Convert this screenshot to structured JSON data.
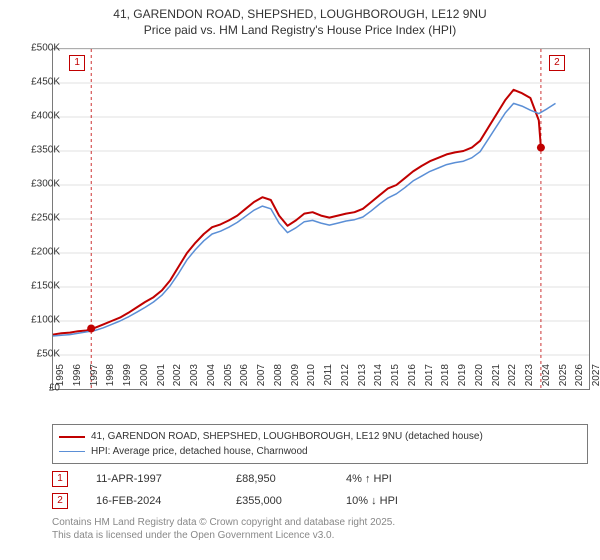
{
  "title": {
    "line1": "41, GARENDON ROAD, SHEPSHED, LOUGHBOROUGH, LE12 9NU",
    "line2": "Price paid vs. HM Land Registry's House Price Index (HPI)",
    "fontsize": 12,
    "color": "#333333"
  },
  "chart": {
    "type": "line",
    "background_color": "#ffffff",
    "border_color": "#7a7a7a",
    "grid_color": "#e0e0e0",
    "x": {
      "min": 1995,
      "max": 2027,
      "tick_step": 1,
      "labels": [
        "1995",
        "1996",
        "1997",
        "1998",
        "1999",
        "2000",
        "2001",
        "2002",
        "2003",
        "2004",
        "2005",
        "2006",
        "2007",
        "2008",
        "2009",
        "2010",
        "2011",
        "2012",
        "2013",
        "2014",
        "2015",
        "2016",
        "2017",
        "2018",
        "2019",
        "2020",
        "2021",
        "2022",
        "2023",
        "2024",
        "2025",
        "2026",
        "2027"
      ],
      "label_fontsize": 10
    },
    "y": {
      "min": 0,
      "max": 500000,
      "tick_step": 50000,
      "labels": [
        "£0",
        "£50K",
        "£100K",
        "£150K",
        "£200K",
        "£250K",
        "£300K",
        "£350K",
        "£400K",
        "£450K",
        "£500K"
      ],
      "label_fontsize": 10
    },
    "series": [
      {
        "name": "41, GARENDON ROAD, SHEPSHED, LOUGHBOROUGH, LE12 9NU (detached house)",
        "color": "#c00000",
        "line_width": 2,
        "points": [
          [
            1995.0,
            80000
          ],
          [
            1995.5,
            82000
          ],
          [
            1996.0,
            83000
          ],
          [
            1996.5,
            85000
          ],
          [
            1997.0,
            86000
          ],
          [
            1997.28,
            88950
          ],
          [
            1997.5,
            90000
          ],
          [
            1998.0,
            95000
          ],
          [
            1998.5,
            100000
          ],
          [
            1999.0,
            105000
          ],
          [
            1999.5,
            112000
          ],
          [
            2000.0,
            120000
          ],
          [
            2000.5,
            128000
          ],
          [
            2001.0,
            135000
          ],
          [
            2001.5,
            145000
          ],
          [
            2002.0,
            160000
          ],
          [
            2002.5,
            180000
          ],
          [
            2003.0,
            200000
          ],
          [
            2003.5,
            215000
          ],
          [
            2004.0,
            228000
          ],
          [
            2004.5,
            238000
          ],
          [
            2005.0,
            242000
          ],
          [
            2005.5,
            248000
          ],
          [
            2006.0,
            255000
          ],
          [
            2006.5,
            265000
          ],
          [
            2007.0,
            275000
          ],
          [
            2007.5,
            282000
          ],
          [
            2008.0,
            278000
          ],
          [
            2008.5,
            255000
          ],
          [
            2009.0,
            240000
          ],
          [
            2009.5,
            248000
          ],
          [
            2010.0,
            258000
          ],
          [
            2010.5,
            260000
          ],
          [
            2011.0,
            255000
          ],
          [
            2011.5,
            252000
          ],
          [
            2012.0,
            255000
          ],
          [
            2012.5,
            258000
          ],
          [
            2013.0,
            260000
          ],
          [
            2013.5,
            265000
          ],
          [
            2014.0,
            275000
          ],
          [
            2014.5,
            285000
          ],
          [
            2015.0,
            295000
          ],
          [
            2015.5,
            300000
          ],
          [
            2016.0,
            310000
          ],
          [
            2016.5,
            320000
          ],
          [
            2017.0,
            328000
          ],
          [
            2017.5,
            335000
          ],
          [
            2018.0,
            340000
          ],
          [
            2018.5,
            345000
          ],
          [
            2019.0,
            348000
          ],
          [
            2019.5,
            350000
          ],
          [
            2020.0,
            355000
          ],
          [
            2020.5,
            365000
          ],
          [
            2021.0,
            385000
          ],
          [
            2021.5,
            405000
          ],
          [
            2022.0,
            425000
          ],
          [
            2022.5,
            440000
          ],
          [
            2023.0,
            435000
          ],
          [
            2023.5,
            428000
          ],
          [
            2024.0,
            395000
          ],
          [
            2024.13,
            355000
          ]
        ]
      },
      {
        "name": "HPI: Average price, detached house, Charnwood",
        "color": "#5b8fd6",
        "line_width": 1.5,
        "points": [
          [
            1995.0,
            78000
          ],
          [
            1995.5,
            79000
          ],
          [
            1996.0,
            80000
          ],
          [
            1996.5,
            82000
          ],
          [
            1997.0,
            84000
          ],
          [
            1997.5,
            86000
          ],
          [
            1998.0,
            90000
          ],
          [
            1998.5,
            95000
          ],
          [
            1999.0,
            100000
          ],
          [
            1999.5,
            106000
          ],
          [
            2000.0,
            113000
          ],
          [
            2000.5,
            120000
          ],
          [
            2001.0,
            128000
          ],
          [
            2001.5,
            138000
          ],
          [
            2002.0,
            152000
          ],
          [
            2002.5,
            170000
          ],
          [
            2003.0,
            190000
          ],
          [
            2003.5,
            205000
          ],
          [
            2004.0,
            218000
          ],
          [
            2004.5,
            228000
          ],
          [
            2005.0,
            232000
          ],
          [
            2005.5,
            238000
          ],
          [
            2006.0,
            245000
          ],
          [
            2006.5,
            254000
          ],
          [
            2007.0,
            263000
          ],
          [
            2007.5,
            269000
          ],
          [
            2008.0,
            265000
          ],
          [
            2008.5,
            244000
          ],
          [
            2009.0,
            230000
          ],
          [
            2009.5,
            237000
          ],
          [
            2010.0,
            246000
          ],
          [
            2010.5,
            248000
          ],
          [
            2011.0,
            244000
          ],
          [
            2011.5,
            241000
          ],
          [
            2012.0,
            244000
          ],
          [
            2012.5,
            247000
          ],
          [
            2013.0,
            249000
          ],
          [
            2013.5,
            253000
          ],
          [
            2014.0,
            262000
          ],
          [
            2014.5,
            272000
          ],
          [
            2015.0,
            281000
          ],
          [
            2015.5,
            287000
          ],
          [
            2016.0,
            296000
          ],
          [
            2016.5,
            306000
          ],
          [
            2017.0,
            313000
          ],
          [
            2017.5,
            320000
          ],
          [
            2018.0,
            325000
          ],
          [
            2018.5,
            330000
          ],
          [
            2019.0,
            333000
          ],
          [
            2019.5,
            335000
          ],
          [
            2020.0,
            340000
          ],
          [
            2020.5,
            349000
          ],
          [
            2021.0,
            368000
          ],
          [
            2021.5,
            387000
          ],
          [
            2022.0,
            406000
          ],
          [
            2022.5,
            420000
          ],
          [
            2023.0,
            416000
          ],
          [
            2023.5,
            410000
          ],
          [
            2024.0,
            405000
          ],
          [
            2024.5,
            412000
          ],
          [
            2025.0,
            420000
          ]
        ]
      }
    ],
    "markers": [
      {
        "label": "1",
        "x": 1997.28,
        "y": 88950,
        "dot_color": "#c00000",
        "vline_color": "#c00000"
      },
      {
        "label": "2",
        "x": 2024.13,
        "y": 355000,
        "dot_color": "#c00000",
        "vline_color": "#c00000"
      }
    ]
  },
  "legend": {
    "items": [
      {
        "color": "#c00000",
        "width": 2,
        "label": "41, GARENDON ROAD, SHEPSHED, LOUGHBOROUGH, LE12 9NU (detached house)"
      },
      {
        "color": "#5b8fd6",
        "width": 1.5,
        "label": "HPI: Average price, detached house, Charnwood"
      }
    ]
  },
  "transactions": [
    {
      "marker": "1",
      "date": "11-APR-1997",
      "price": "£88,950",
      "change": "4% ↑ HPI"
    },
    {
      "marker": "2",
      "date": "16-FEB-2024",
      "price": "£355,000",
      "change": "10% ↓ HPI"
    }
  ],
  "footer": {
    "line1": "Contains HM Land Registry data © Crown copyright and database right 2025.",
    "line2": "This data is licensed under the Open Government Licence v3.0.",
    "color": "#888888",
    "fontsize": 10
  }
}
